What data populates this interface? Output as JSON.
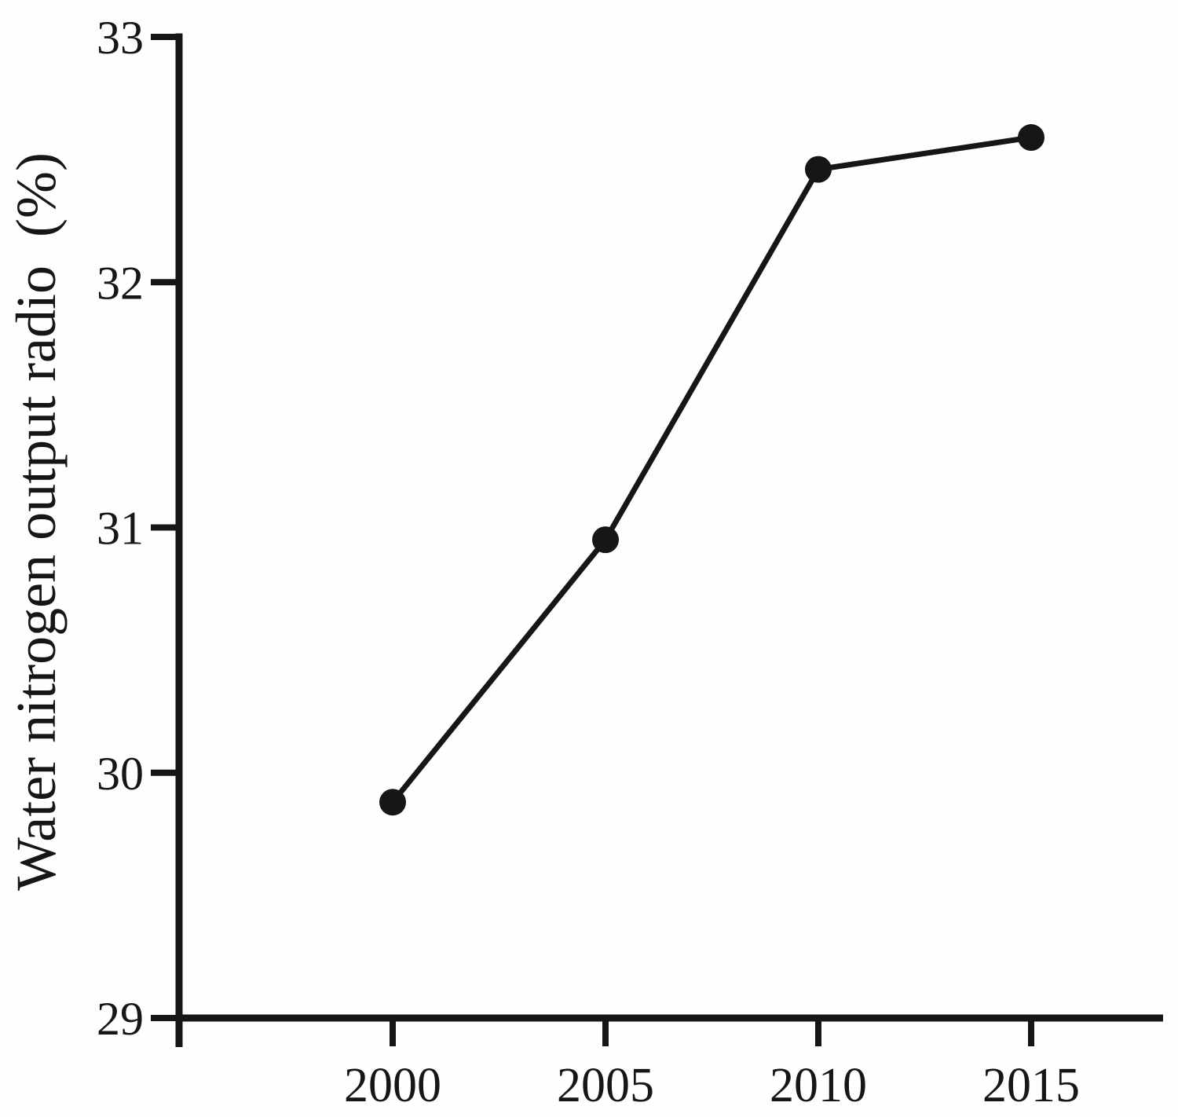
{
  "figure": {
    "background": "#fffefd",
    "ink": "#161616"
  },
  "chart_data": {
    "type": "line",
    "title": "",
    "xlabel": "",
    "ylabel": "Water nitrogen output radio  (%)",
    "x": [
      2000,
      2005,
      2010,
      2015
    ],
    "xticklabels": [
      "2000",
      "2005",
      "2010",
      "2015"
    ],
    "series": [
      {
        "values": [
          29.88,
          30.95,
          32.46,
          32.59
        ],
        "color": "#161616",
        "marker": "filled-circle"
      }
    ],
    "ylim": [
      29,
      33
    ],
    "yticks": [
      29,
      30,
      31,
      32,
      33
    ],
    "ytick_labels": [
      "29",
      "30",
      "31",
      "32",
      "33"
    ],
    "grid": false,
    "legend": "none",
    "axes_shown": [
      "left",
      "bottom"
    ]
  }
}
